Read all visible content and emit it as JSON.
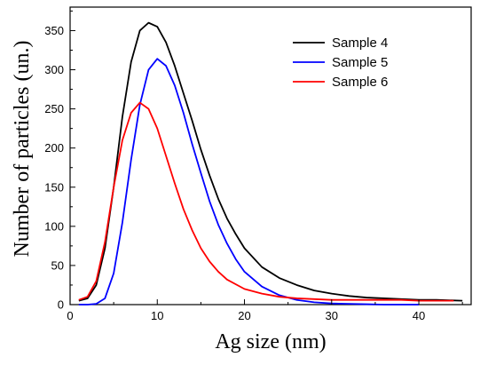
{
  "chart_data": {
    "type": "line",
    "title": "",
    "xlabel": "Ag size (nm)",
    "ylabel": "Number of particles (un.)",
    "xlim": [
      0,
      46
    ],
    "ylim": [
      0,
      380
    ],
    "xticks": [
      0,
      10,
      20,
      30,
      40
    ],
    "yticks": [
      0,
      50,
      100,
      150,
      200,
      250,
      300,
      350
    ],
    "grid": false,
    "legend_position": "top-right",
    "series": [
      {
        "name": "Sample 4",
        "color": "#000000",
        "x": [
          1,
          2,
          3,
          4,
          5,
          6,
          7,
          8,
          9,
          10,
          11,
          12,
          13,
          14,
          15,
          16,
          17,
          18,
          19,
          20,
          22,
          24,
          26,
          28,
          30,
          32,
          34,
          36,
          38,
          40,
          42,
          45
        ],
        "y": [
          5,
          8,
          25,
          72,
          150,
          240,
          310,
          350,
          360,
          355,
          335,
          305,
          270,
          235,
          198,
          165,
          135,
          110,
          90,
          72,
          48,
          34,
          25,
          18,
          14,
          11,
          9,
          8,
          7,
          6,
          6,
          5
        ]
      },
      {
        "name": "Sample 5",
        "color": "#0000ff",
        "x": [
          1,
          2,
          3,
          4,
          5,
          6,
          7,
          8,
          9,
          10,
          11,
          12,
          13,
          14,
          15,
          16,
          17,
          18,
          19,
          20,
          22,
          24,
          26,
          28,
          30,
          32,
          34,
          36,
          38,
          40
        ],
        "y": [
          0,
          0,
          1,
          8,
          40,
          105,
          185,
          255,
          300,
          314,
          305,
          280,
          245,
          205,
          168,
          132,
          102,
          78,
          58,
          42,
          23,
          12,
          6,
          3,
          1.5,
          1,
          0.5,
          0,
          0,
          0
        ]
      },
      {
        "name": "Sample 6",
        "color": "#ff0000",
        "x": [
          1,
          2,
          3,
          4,
          5,
          6,
          7,
          8,
          9,
          10,
          11,
          12,
          13,
          14,
          15,
          16,
          17,
          18,
          20,
          22,
          24,
          26,
          28,
          30,
          32,
          34,
          36,
          38,
          40,
          44
        ],
        "y": [
          6,
          10,
          30,
          80,
          150,
          210,
          245,
          258,
          250,
          225,
          190,
          155,
          122,
          95,
          72,
          55,
          42,
          32,
          20,
          14,
          10,
          8,
          7,
          6,
          6,
          6,
          6,
          6,
          5,
          5
        ]
      }
    ]
  }
}
